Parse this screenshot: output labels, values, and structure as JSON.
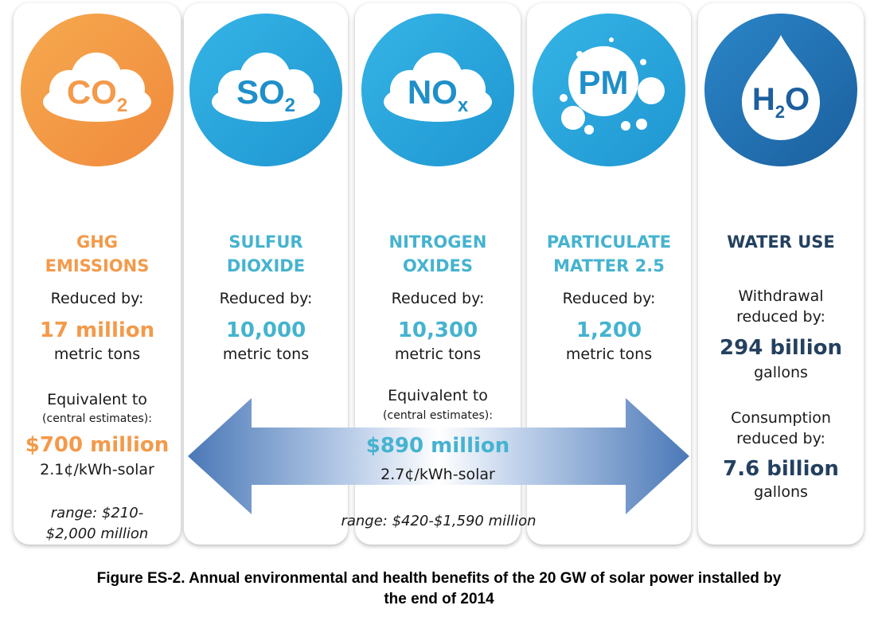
{
  "colors": {
    "ghg": "#f39a4b",
    "pollutant": "#45b3cf",
    "water": "#24405f"
  },
  "cards": {
    "ghg": {
      "icon": {
        "main": "CO",
        "sub": "2"
      },
      "title_line1": "GHG",
      "title_line2": "EMISSIONS",
      "reduced_label": "Reduced by:",
      "amount": "17 million",
      "unit": "metric tons",
      "equiv_label": "Equivalent to",
      "equiv_note": "(central estimates):",
      "value": "$700 million",
      "rate": "2.1¢/kWh-solar",
      "range_line1": "range: $210-",
      "range_line2": "$2,000 million"
    },
    "so2": {
      "icon": {
        "main": "SO",
        "sub": "2"
      },
      "title_line1": "SULFUR",
      "title_line2": "DIOXIDE",
      "reduced_label": "Reduced by:",
      "amount": "10,000",
      "unit": "metric tons"
    },
    "nox": {
      "icon": {
        "main": "NO",
        "sub": "x"
      },
      "title_line1": "NITROGEN",
      "title_line2": "OXIDES",
      "reduced_label": "Reduced by:",
      "amount": "10,300",
      "unit": "metric tons"
    },
    "pm": {
      "icon": {
        "main": "PM"
      },
      "title_line1": "PARTICULATE",
      "title_line2": "MATTER 2.5",
      "reduced_label": "Reduced by:",
      "amount": "1,200",
      "unit": "metric tons"
    },
    "water": {
      "icon": {
        "main": "H",
        "sub": "2",
        "tail": "O"
      },
      "title": "WATER USE",
      "withdrawal_line1": "Withdrawal",
      "withdrawal_line2": "reduced by:",
      "withdrawal_amount": "294 billion",
      "withdrawal_unit": "gallons",
      "consumption_line1": "Consumption",
      "consumption_line2": "reduced by:",
      "consumption_amount": "7.6 billion",
      "consumption_unit": "gallons"
    }
  },
  "combined": {
    "equiv_label": "Equivalent to",
    "equiv_note": "(central estimates):",
    "value": "$890 million",
    "rate": "2.7¢/kWh-solar",
    "range": "range: $420-$1,590 million"
  },
  "caption": {
    "line1": "Figure ES-2. Annual environmental and health benefits of the 20 GW of solar power installed by",
    "line2": "the end of 2014"
  }
}
